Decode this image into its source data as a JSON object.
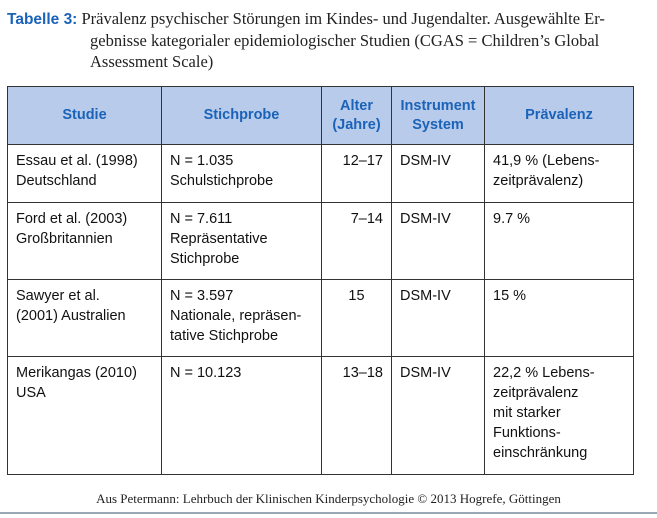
{
  "caption": {
    "label": "Tabelle 3:",
    "lines": [
      "Prävalenz psychischer Störungen im Kindes- und Jugendalter. Ausgewählte Er-",
      "gebnisse kategorialer epidemiologischer Studien (CGAS = Children’s Global",
      "Assessment Scale)"
    ]
  },
  "table": {
    "headers": {
      "study": "Studie",
      "sample": "Stichprobe",
      "age": [
        "Alter",
        "(Jahre)"
      ],
      "instrument": [
        "Instrument",
        "System"
      ],
      "prevalence": "Prävalenz"
    },
    "rows": [
      {
        "study": [
          "Essau et al. (1998)",
          "Deutschland"
        ],
        "sample": [
          "N = 1.035",
          "Schulstichprobe"
        ],
        "age": "12–17",
        "instrument": "DSM-IV",
        "prevalence": [
          "41,9 % (Lebens-",
          "zeitprävalenz)"
        ]
      },
      {
        "study": [
          "Ford et al. (2003)",
          "Großbritannien"
        ],
        "sample": [
          "N = 7.611",
          "Repräsentative",
          "Stichprobe"
        ],
        "age": "7–14",
        "instrument": "DSM-IV",
        "prevalence": [
          "9.7 %"
        ]
      },
      {
        "study": [
          "Sawyer et al.",
          "(2001) Australien"
        ],
        "sample": [
          "N = 3.597",
          "Nationale, repräsen-",
          "tative Stichprobe"
        ],
        "age": "15",
        "instrument": "DSM-IV",
        "prevalence": [
          "15 %"
        ]
      },
      {
        "study": [
          "Merikangas (2010)",
          "USA"
        ],
        "sample": [
          "N = 10.123"
        ],
        "age": "13–18",
        "instrument": "DSM-IV",
        "prevalence": [
          "22,2 % Lebens-",
          "zeitprävalenz",
          "mit starker",
          "Funktions-",
          "einschränkung"
        ]
      }
    ]
  },
  "source": "Aus Petermann: Lehrbuch der Klinischen Kinderpsychologie © 2013 Hogrefe, Göttingen",
  "colors": {
    "header_bg": "#b9cbea",
    "accent": "#1a63b8"
  }
}
